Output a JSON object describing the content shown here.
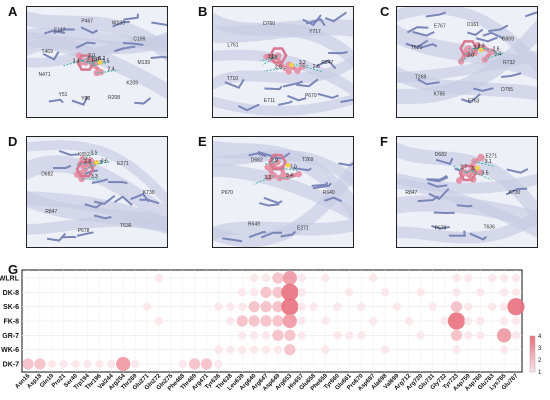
{
  "panels": [
    {
      "id": "A",
      "label": "A",
      "residues": [
        "M139",
        "K209",
        "R208",
        "Y98",
        "Y51",
        "N471",
        "T469",
        "E117",
        "P467",
        "W133",
        "C199"
      ],
      "distances": [
        "2.0",
        "3.0",
        "3.5",
        "3.2",
        "2.4",
        "3.4",
        "3.6",
        "2.1"
      ]
    },
    {
      "id": "B",
      "label": "B",
      "residues": [
        "R847",
        "P670",
        "E711",
        "T710",
        "L761",
        "D760",
        "Y717"
      ],
      "distances": [
        "3.1",
        "3.5",
        "2.8",
        "3.2",
        "2.6"
      ]
    },
    {
      "id": "C",
      "label": "C",
      "residues": [
        "R732",
        "D755",
        "E763",
        "K765",
        "T269",
        "T636",
        "E767",
        "D161",
        "G809"
      ],
      "distances": [
        "3.2",
        "2.9",
        "3.0",
        "2.6",
        "3.4"
      ]
    },
    {
      "id": "D",
      "label": "D",
      "residues": [
        "K730",
        "T636",
        "P678",
        "R847",
        "D682",
        "K652",
        "E271"
      ],
      "distances": [
        "3.3",
        "2.5",
        "3.6",
        "3.1",
        "2.8"
      ]
    },
    {
      "id": "E",
      "label": "E",
      "residues": [
        "R640",
        "E271",
        "R649",
        "P670",
        "D682",
        "T269"
      ],
      "distances": [
        "3.2",
        "2.9",
        "3.0",
        "3.4"
      ]
    },
    {
      "id": "F",
      "label": "F",
      "residues": [
        "K730",
        "T636",
        "P678",
        "R847",
        "D682",
        "E271"
      ],
      "distances": [
        "3.3",
        "2.7",
        "3.5",
        "3.1"
      ]
    }
  ],
  "panel_g_label": "G",
  "chart_data": {
    "type": "bubble",
    "rows": [
      "WLRL",
      "DK-8",
      "SK-6",
      "FK-8",
      "GR-7",
      "WK-6",
      "DK-7"
    ],
    "columns": [
      "Asn16",
      "Asp18",
      "Gln19",
      "Pro21",
      "Ser40",
      "Trp194",
      "Thr196",
      "Val244",
      "Arg254",
      "Thr269",
      "Glu271",
      "Gln272",
      "Gln275",
      "Phe468",
      "Thr469",
      "Arg471",
      "Tyr636",
      "Thr638",
      "Leu639",
      "Arg640",
      "Arg647",
      "Asp649",
      "Arg653",
      "His657",
      "Glu658",
      "Phe659",
      "Tyr660",
      "Glu661",
      "Pro670",
      "Asp697",
      "Ala698",
      "Val699",
      "Arg712",
      "Arg720",
      "Glu731",
      "Gly732",
      "Tyr733",
      "Asp759",
      "Asp760",
      "Glu763",
      "Lys765",
      "Glu767"
    ],
    "values": [
      [
        0,
        0,
        0,
        0,
        0,
        0,
        0,
        0,
        0,
        0,
        0,
        1,
        0,
        0,
        0,
        0,
        0,
        0,
        0,
        1,
        1,
        2,
        3,
        1,
        0,
        1,
        0,
        0,
        0,
        1,
        0,
        0,
        0,
        0,
        0,
        0,
        1,
        1,
        0,
        1,
        1,
        1
      ],
      [
        0,
        0,
        0,
        0,
        0,
        0,
        0,
        0,
        0,
        0,
        0,
        0,
        0,
        0,
        0,
        0,
        0,
        0,
        1,
        1,
        2,
        2,
        4,
        1,
        0,
        0,
        0,
        1,
        0,
        0,
        1,
        0,
        0,
        1,
        0,
        0,
        1,
        0,
        1,
        0,
        1,
        1
      ],
      [
        0,
        0,
        0,
        0,
        0,
        0,
        0,
        0,
        0,
        0,
        1,
        0,
        0,
        0,
        0,
        0,
        1,
        1,
        1,
        2,
        2,
        2,
        4,
        1,
        1,
        0,
        1,
        0,
        1,
        0,
        0,
        1,
        0,
        0,
        1,
        0,
        2,
        1,
        0,
        1,
        1,
        4
      ],
      [
        0,
        0,
        0,
        0,
        0,
        0,
        0,
        0,
        0,
        0,
        0,
        1,
        0,
        0,
        0,
        0,
        0,
        1,
        2,
        2,
        2,
        2,
        3,
        1,
        0,
        1,
        0,
        0,
        0,
        1,
        0,
        0,
        1,
        0,
        0,
        1,
        4,
        1,
        1,
        0,
        1,
        1
      ],
      [
        0,
        0,
        0,
        0,
        0,
        0,
        0,
        0,
        0,
        0,
        0,
        0,
        0,
        0,
        0,
        0,
        0,
        0,
        1,
        1,
        1,
        2,
        2,
        1,
        0,
        0,
        1,
        1,
        1,
        0,
        0,
        0,
        0,
        1,
        0,
        0,
        2,
        1,
        1,
        0,
        3,
        1
      ],
      [
        0,
        0,
        0,
        0,
        0,
        0,
        0,
        0,
        0,
        0,
        0,
        0,
        0,
        0,
        0,
        0,
        1,
        1,
        1,
        1,
        1,
        1,
        2,
        0,
        0,
        1,
        0,
        0,
        0,
        0,
        1,
        0,
        0,
        0,
        0,
        0,
        1,
        0,
        0,
        0,
        1,
        0
      ],
      [
        2,
        2,
        1,
        1,
        1,
        1,
        1,
        1,
        3,
        1,
        0,
        0,
        0,
        1,
        2,
        2,
        1,
        0,
        0,
        0,
        0,
        0,
        0,
        0,
        0,
        0,
        0,
        0,
        0,
        0,
        0,
        0,
        0,
        0,
        0,
        0,
        0,
        0,
        0,
        0,
        0,
        0
      ]
    ],
    "color_scale": {
      "min": 1,
      "max": 4,
      "ticks": [
        "4",
        "3",
        "2",
        "1"
      ],
      "low_color": "#fbe6ea",
      "high_color": "#e8707d"
    },
    "grid": true
  }
}
